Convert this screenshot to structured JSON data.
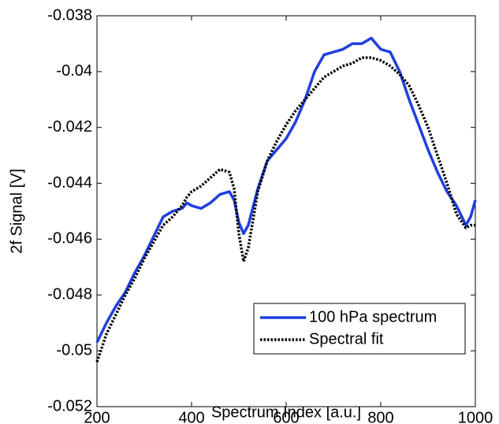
{
  "chart_data": {
    "type": "line",
    "xlabel": "Spectrum Index [a.u.]",
    "ylabel": "2f Signal [V]",
    "x": [
      200,
      220,
      240,
      260,
      280,
      300,
      320,
      340,
      360,
      380,
      390,
      400,
      420,
      440,
      460,
      480,
      490,
      500,
      510,
      520,
      540,
      560,
      580,
      600,
      620,
      640,
      660,
      680,
      700,
      720,
      740,
      760,
      780,
      800,
      820,
      840,
      860,
      880,
      900,
      920,
      940,
      960,
      980,
      990,
      1000
    ],
    "series": [
      {
        "name": "100 hPa spectrum",
        "color": "#1f3fe0",
        "style": "solid",
        "values": [
          -0.0497,
          -0.049,
          -0.0484,
          -0.0479,
          -0.0472,
          -0.0466,
          -0.0459,
          -0.0452,
          -0.045,
          -0.0449,
          -0.0447,
          -0.0448,
          -0.0449,
          -0.0447,
          -0.0444,
          -0.0443,
          -0.0446,
          -0.0454,
          -0.0458,
          -0.0455,
          -0.0442,
          -0.0432,
          -0.0428,
          -0.0424,
          -0.0418,
          -0.041,
          -0.04,
          -0.0394,
          -0.0393,
          -0.0392,
          -0.039,
          -0.039,
          -0.0388,
          -0.0392,
          -0.0393,
          -0.04,
          -0.041,
          -0.0419,
          -0.0428,
          -0.0436,
          -0.0443,
          -0.0448,
          -0.0455,
          -0.0452,
          -0.0446
        ]
      },
      {
        "name": "Spectral fit",
        "color": "#000000",
        "style": "dotted",
        "values": [
          -0.0504,
          -0.0494,
          -0.0487,
          -0.048,
          -0.0474,
          -0.0467,
          -0.0461,
          -0.0455,
          -0.0452,
          -0.0448,
          -0.0445,
          -0.0443,
          -0.0441,
          -0.0438,
          -0.0435,
          -0.0436,
          -0.0442,
          -0.0458,
          -0.0468,
          -0.0463,
          -0.0443,
          -0.0432,
          -0.0425,
          -0.0419,
          -0.0414,
          -0.041,
          -0.0406,
          -0.0402,
          -0.04,
          -0.0398,
          -0.0397,
          -0.0395,
          -0.0395,
          -0.0396,
          -0.0398,
          -0.0401,
          -0.0405,
          -0.0412,
          -0.042,
          -0.043,
          -0.044,
          -0.0451,
          -0.0456,
          -0.0455,
          -0.0455
        ]
      }
    ],
    "xlim": [
      200,
      1000
    ],
    "xticks": [
      200,
      400,
      600,
      800,
      1000
    ],
    "ylim": [
      -0.052,
      -0.038
    ],
    "yticks": [
      -0.052,
      -0.05,
      -0.048,
      -0.046,
      -0.044,
      -0.042,
      -0.04,
      -0.038
    ],
    "legend": "lower right"
  }
}
